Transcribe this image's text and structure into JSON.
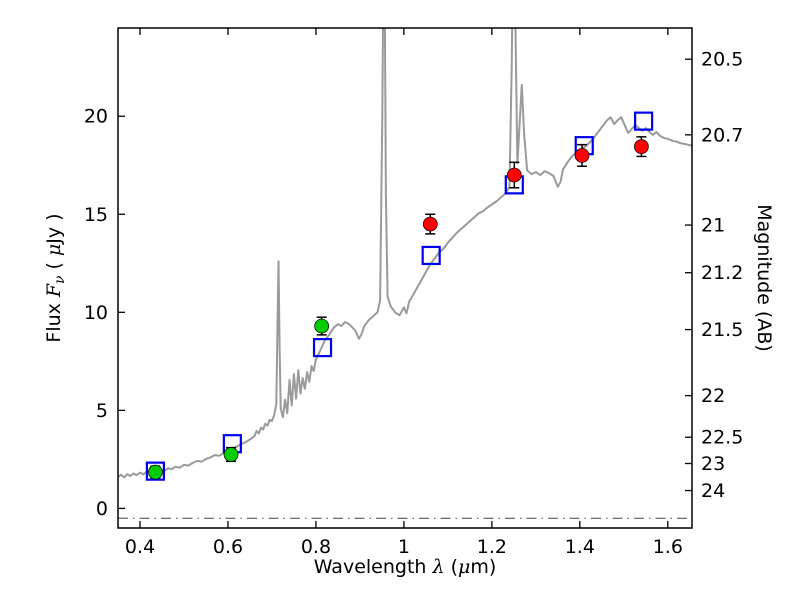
{
  "figure": {
    "background": "#ffffff"
  },
  "chart_data": {
    "type": "line",
    "title": "",
    "xlabel": "Wavelength λ (μm)",
    "ylabel_left": "Flux Fν ( μJy )",
    "ylabel_right": "Magnitude (AB)",
    "xlabel_parts": [
      {
        "t": "Wavelength  "
      },
      {
        "t": "λ",
        "italic": true
      },
      {
        "t": " ("
      },
      {
        "t": "μ",
        "italic": true
      },
      {
        "t": "m)"
      }
    ],
    "ylabel_left_parts": [
      {
        "t": "Flux  "
      },
      {
        "t": "F",
        "italic": true
      },
      {
        "t": "ν",
        "italic": true,
        "sub": true
      },
      {
        "t": "  ( "
      },
      {
        "t": "μ",
        "italic": true
      },
      {
        "t": "Jy )"
      }
    ],
    "xlim": [
      0.35,
      1.655
    ],
    "ylim": [
      -1,
      24.5
    ],
    "grid": false,
    "legend": "none",
    "x_ticks": [
      {
        "v": 0.4,
        "label": "0.4"
      },
      {
        "v": 0.6,
        "label": "0.6"
      },
      {
        "v": 0.8,
        "label": "0.8"
      },
      {
        "v": 1.0,
        "label": "1"
      },
      {
        "v": 1.2,
        "label": "1.2"
      },
      {
        "v": 1.4,
        "label": "1.4"
      },
      {
        "v": 1.6,
        "label": "1.6"
      }
    ],
    "y_ticks_left": [
      {
        "v": 0,
        "label": "0"
      },
      {
        "v": 5,
        "label": "5"
      },
      {
        "v": 10,
        "label": "10"
      },
      {
        "v": 15,
        "label": "15"
      },
      {
        "v": 20,
        "label": "20"
      }
    ],
    "y_ticks_right": [
      {
        "flux": 22.91,
        "label": "20.5"
      },
      {
        "flux": 19.05,
        "label": "20.7"
      },
      {
        "flux": 14.45,
        "label": "21"
      },
      {
        "flux": 12.02,
        "label": "21.2"
      },
      {
        "flux": 9.12,
        "label": "21.5"
      },
      {
        "flux": 5.75,
        "label": "22"
      },
      {
        "flux": 3.63,
        "label": "22.5"
      },
      {
        "flux": 2.29,
        "label": "23"
      },
      {
        "flux": 0.91,
        "label": "24"
      }
    ],
    "reference_line": {
      "y": -0.5,
      "style": "dashdot",
      "color": "#444444"
    },
    "colors": {
      "spectrum": "#9a9a9a",
      "model_square": "#0000ee",
      "observed_green": "#00cc00",
      "observed_red": "#ff0000",
      "errorbar": "#000000"
    },
    "series": [
      {
        "name": "model-spectrum",
        "type": "line",
        "color": "#9a9a9a",
        "points": [
          [
            0.35,
            1.6
          ],
          [
            0.357,
            1.72
          ],
          [
            0.364,
            1.58
          ],
          [
            0.371,
            1.75
          ],
          [
            0.378,
            1.65
          ],
          [
            0.385,
            1.78
          ],
          [
            0.392,
            1.7
          ],
          [
            0.4,
            1.82
          ],
          [
            0.408,
            1.74
          ],
          [
            0.416,
            1.88
          ],
          [
            0.424,
            1.8
          ],
          [
            0.432,
            1.92
          ],
          [
            0.44,
            1.86
          ],
          [
            0.448,
            1.98
          ],
          [
            0.456,
            1.92
          ],
          [
            0.464,
            2.05
          ],
          [
            0.472,
            2.0
          ],
          [
            0.48,
            2.12
          ],
          [
            0.49,
            2.08
          ],
          [
            0.5,
            2.22
          ],
          [
            0.51,
            2.18
          ],
          [
            0.52,
            2.32
          ],
          [
            0.53,
            2.42
          ],
          [
            0.54,
            2.38
          ],
          [
            0.55,
            2.52
          ],
          [
            0.56,
            2.6
          ],
          [
            0.57,
            2.72
          ],
          [
            0.58,
            2.68
          ],
          [
            0.59,
            2.82
          ],
          [
            0.6,
            2.95
          ],
          [
            0.61,
            3.05
          ],
          [
            0.62,
            3.15
          ],
          [
            0.63,
            3.28
          ],
          [
            0.64,
            3.38
          ],
          [
            0.65,
            3.52
          ],
          [
            0.66,
            3.68
          ],
          [
            0.665,
            3.95
          ],
          [
            0.67,
            3.82
          ],
          [
            0.675,
            4.12
          ],
          [
            0.68,
            4.02
          ],
          [
            0.685,
            4.32
          ],
          [
            0.69,
            4.22
          ],
          [
            0.695,
            4.52
          ],
          [
            0.7,
            4.45
          ],
          [
            0.705,
            4.75
          ],
          [
            0.71,
            5.3
          ],
          [
            0.7125,
            9.0
          ],
          [
            0.715,
            12.6
          ],
          [
            0.7175,
            8.2
          ],
          [
            0.72,
            5.1
          ],
          [
            0.725,
            4.65
          ],
          [
            0.73,
            5.55
          ],
          [
            0.735,
            4.85
          ],
          [
            0.74,
            6.55
          ],
          [
            0.745,
            5.25
          ],
          [
            0.75,
            6.85
          ],
          [
            0.755,
            5.6
          ],
          [
            0.76,
            7.05
          ],
          [
            0.765,
            5.85
          ],
          [
            0.77,
            6.65
          ],
          [
            0.775,
            6.1
          ],
          [
            0.78,
            6.95
          ],
          [
            0.785,
            6.45
          ],
          [
            0.79,
            7.25
          ],
          [
            0.795,
            7.0
          ],
          [
            0.8,
            7.6
          ],
          [
            0.81,
            8.05
          ],
          [
            0.82,
            8.55
          ],
          [
            0.83,
            8.85
          ],
          [
            0.84,
            9.2
          ],
          [
            0.85,
            9.4
          ],
          [
            0.858,
            9.3
          ],
          [
            0.866,
            9.5
          ],
          [
            0.874,
            9.42
          ],
          [
            0.882,
            9.25
          ],
          [
            0.89,
            9.05
          ],
          [
            0.898,
            8.65
          ],
          [
            0.904,
            8.9
          ],
          [
            0.91,
            9.3
          ],
          [
            0.92,
            9.6
          ],
          [
            0.93,
            9.8
          ],
          [
            0.94,
            10.0
          ],
          [
            0.946,
            10.6
          ],
          [
            0.951,
            20.0
          ],
          [
            0.955,
            32.0
          ],
          [
            0.959,
            16.0
          ],
          [
            0.963,
            10.8
          ],
          [
            0.97,
            10.3
          ],
          [
            0.98,
            10.0
          ],
          [
            0.99,
            9.85
          ],
          [
            1.0,
            10.25
          ],
          [
            1.006,
            9.95
          ],
          [
            1.012,
            10.55
          ],
          [
            1.02,
            10.85
          ],
          [
            1.03,
            11.25
          ],
          [
            1.04,
            11.65
          ],
          [
            1.05,
            12.05
          ],
          [
            1.06,
            12.45
          ],
          [
            1.07,
            12.75
          ],
          [
            1.08,
            13.05
          ],
          [
            1.09,
            13.25
          ],
          [
            1.1,
            13.55
          ],
          [
            1.11,
            13.8
          ],
          [
            1.12,
            14.05
          ],
          [
            1.13,
            14.25
          ],
          [
            1.14,
            14.45
          ],
          [
            1.15,
            14.65
          ],
          [
            1.16,
            14.85
          ],
          [
            1.17,
            15.05
          ],
          [
            1.18,
            15.15
          ],
          [
            1.19,
            15.35
          ],
          [
            1.2,
            15.5
          ],
          [
            1.21,
            15.65
          ],
          [
            1.22,
            15.85
          ],
          [
            1.23,
            16.05
          ],
          [
            1.24,
            16.4
          ],
          [
            1.245,
            22.5
          ],
          [
            1.25,
            32.0
          ],
          [
            1.254,
            24.0
          ],
          [
            1.258,
            17.6
          ],
          [
            1.263,
            19.6
          ],
          [
            1.268,
            21.6
          ],
          [
            1.273,
            19.2
          ],
          [
            1.28,
            17.25
          ],
          [
            1.29,
            17.05
          ],
          [
            1.3,
            17.15
          ],
          [
            1.31,
            17.0
          ],
          [
            1.32,
            17.2
          ],
          [
            1.33,
            17.1
          ],
          [
            1.34,
            16.95
          ],
          [
            1.35,
            16.4
          ],
          [
            1.356,
            16.65
          ],
          [
            1.362,
            17.3
          ],
          [
            1.372,
            17.65
          ],
          [
            1.382,
            17.95
          ],
          [
            1.392,
            18.15
          ],
          [
            1.402,
            18.3
          ],
          [
            1.412,
            18.45
          ],
          [
            1.422,
            18.65
          ],
          [
            1.432,
            18.9
          ],
          [
            1.442,
            19.2
          ],
          [
            1.452,
            19.5
          ],
          [
            1.462,
            19.8
          ],
          [
            1.47,
            19.95
          ],
          [
            1.478,
            19.6
          ],
          [
            1.486,
            19.8
          ],
          [
            1.494,
            19.95
          ],
          [
            1.502,
            19.55
          ],
          [
            1.51,
            19.15
          ],
          [
            1.518,
            19.35
          ],
          [
            1.526,
            19.55
          ],
          [
            1.534,
            19.4
          ],
          [
            1.542,
            19.25
          ],
          [
            1.55,
            19.4
          ],
          [
            1.558,
            19.2
          ],
          [
            1.566,
            19.05
          ],
          [
            1.574,
            19.2
          ],
          [
            1.582,
            19.0
          ],
          [
            1.59,
            18.9
          ],
          [
            1.6,
            18.85
          ],
          [
            1.61,
            18.75
          ],
          [
            1.62,
            18.7
          ],
          [
            1.63,
            18.62
          ],
          [
            1.64,
            18.58
          ],
          [
            1.655,
            18.5
          ]
        ]
      },
      {
        "name": "model-photometry-squares",
        "type": "scatter",
        "marker": "open-square",
        "color": "#0000ee",
        "points": [
          [
            0.435,
            1.9
          ],
          [
            0.61,
            3.3
          ],
          [
            0.815,
            8.2
          ],
          [
            1.062,
            12.9
          ],
          [
            1.251,
            16.5
          ],
          [
            1.41,
            18.5
          ],
          [
            1.545,
            19.75
          ]
        ]
      },
      {
        "name": "observed-photometry-green",
        "type": "scatter",
        "marker": "circle",
        "color": "#00cc00",
        "points": [
          [
            0.435,
            1.85,
            0.3
          ],
          [
            0.607,
            2.75,
            0.35
          ],
          [
            0.813,
            9.3,
            0.45
          ]
        ]
      },
      {
        "name": "observed-photometry-red",
        "type": "scatter",
        "marker": "circle",
        "color": "#ff0000",
        "points": [
          [
            1.06,
            14.5,
            0.5
          ],
          [
            1.251,
            17.0,
            0.65
          ],
          [
            1.405,
            18.0,
            0.55
          ],
          [
            1.54,
            18.45,
            0.5
          ]
        ]
      }
    ]
  }
}
